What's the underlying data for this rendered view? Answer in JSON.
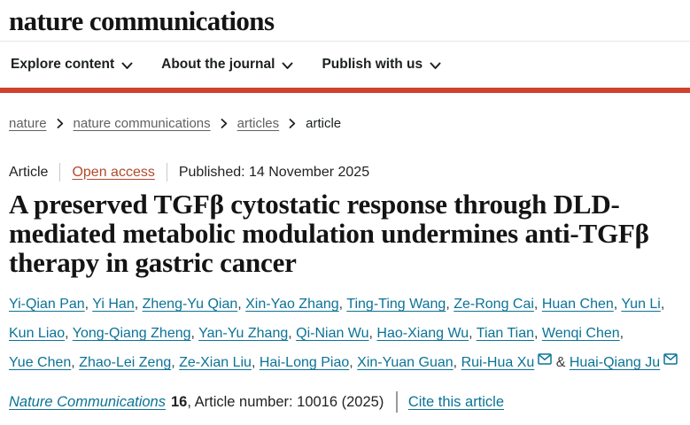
{
  "colors": {
    "brand_red": "#cf422d",
    "link_teal": "#0c7396",
    "open_access_orange": "#b2492c",
    "breadcrumb_gray": "#616161",
    "text_dark": "#1f2326"
  },
  "header": {
    "logo": "nature communications",
    "nav": [
      {
        "id": "explore-content",
        "label": "Explore content"
      },
      {
        "id": "about-the-journal",
        "label": "About the journal"
      },
      {
        "id": "publish-with-us",
        "label": "Publish with us"
      }
    ]
  },
  "breadcrumb": {
    "items": [
      {
        "id": "nature",
        "label": "nature",
        "link": true
      },
      {
        "id": "nature-communications",
        "label": "nature communications",
        "link": true
      },
      {
        "id": "articles",
        "label": "articles",
        "link": true
      },
      {
        "id": "article",
        "label": "article",
        "link": false
      }
    ]
  },
  "article": {
    "type_label": "Article",
    "access_label": "Open access",
    "published": "Published: 14 November 2025",
    "title": "A preserved TGFβ cytostatic response through DLD-mediated metabolic modulation undermines anti-TGFβ therapy in gastric cancer",
    "author_separator": ", ",
    "authors_last_separator": " & ",
    "authors": [
      {
        "name": "Yi-Qian Pan"
      },
      {
        "name": "Yi Han"
      },
      {
        "name": "Zheng-Yu Qian"
      },
      {
        "name": "Xin-Yao Zhang"
      },
      {
        "name": "Ting-Ting Wang"
      },
      {
        "name": "Ze-Rong Cai"
      },
      {
        "name": "Huan Chen"
      },
      {
        "name": "Yun Li"
      },
      {
        "name": "Kun Liao"
      },
      {
        "name": "Yong-Qiang Zheng"
      },
      {
        "name": "Yan-Yu Zhang"
      },
      {
        "name": "Qi-Nian Wu"
      },
      {
        "name": "Hao-Xiang Wu"
      },
      {
        "name": "Tian Tian"
      },
      {
        "name": "Wenqi Chen"
      },
      {
        "name": "Yue Chen"
      },
      {
        "name": "Zhao-Lei Zeng"
      },
      {
        "name": "Ze-Xian Liu"
      },
      {
        "name": "Hai-Long Piao"
      },
      {
        "name": "Xin-Yuan Guan"
      },
      {
        "name": "Rui-Hua Xu",
        "email": true
      },
      {
        "name": "Huai-Qiang Ju",
        "email": true
      }
    ]
  },
  "citation": {
    "journal": "Nature Communications",
    "volume": "16",
    "article_number_text": ", Article number: 10016 (2025)",
    "cite_link": "Cite this article"
  }
}
